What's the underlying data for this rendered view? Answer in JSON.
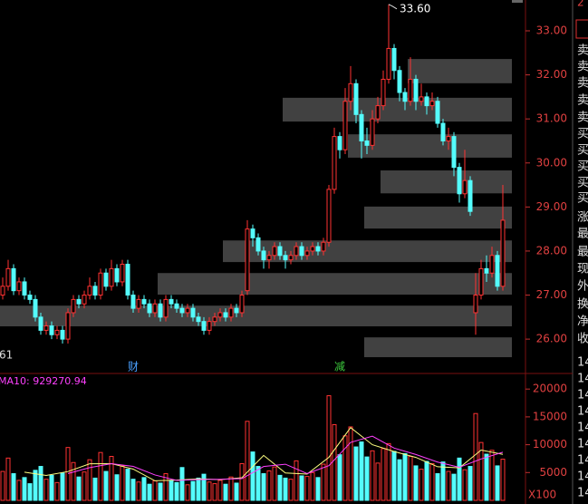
{
  "chart_data": [
    {
      "type": "candlestick",
      "open": [
        27.0,
        27.2,
        27.6,
        27.1,
        27.3,
        27.0,
        26.9,
        26.5,
        26.2,
        26.3,
        26.1,
        26.2,
        26.0,
        26.6,
        26.9,
        26.8,
        27.0,
        27.2,
        27.0,
        27.5,
        27.2,
        27.6,
        27.3,
        27.7,
        27.0,
        26.7,
        26.9,
        26.8,
        26.6,
        26.8,
        26.5,
        26.9,
        26.8,
        26.7,
        26.6,
        26.7,
        26.5,
        26.4,
        26.2,
        26.4,
        26.5,
        26.6,
        26.5,
        26.7,
        26.6,
        27.1,
        28.5,
        28.3,
        28.0,
        27.8,
        27.9,
        28.1,
        27.9,
        27.8,
        27.9,
        28.1,
        27.9,
        28.0,
        28.1,
        28.0,
        28.2,
        29.4,
        30.6,
        30.3,
        31.4,
        31.8,
        31.1,
        30.5,
        30.4,
        31.0,
        31.3,
        31.9,
        32.6,
        32.1,
        31.6,
        31.4,
        31.9,
        31.4,
        31.5,
        31.3,
        31.4,
        30.9,
        30.5,
        30.6,
        29.9,
        29.3,
        29.6,
        26.6,
        27.0,
        27.6,
        27.5,
        27.9,
        27.2
      ],
      "high": [
        27.4,
        27.8,
        27.7,
        27.4,
        27.4,
        27.1,
        27.0,
        26.6,
        26.4,
        26.4,
        26.3,
        26.3,
        26.7,
        27.0,
        27.0,
        27.1,
        27.4,
        27.3,
        27.6,
        27.6,
        27.8,
        27.7,
        27.8,
        27.8,
        27.1,
        27.0,
        27.0,
        26.9,
        26.9,
        26.9,
        27.0,
        27.0,
        26.9,
        26.8,
        26.8,
        26.8,
        26.6,
        26.5,
        26.5,
        26.6,
        26.7,
        26.7,
        26.8,
        26.8,
        27.1,
        28.7,
        28.6,
        28.4,
        28.1,
        28.0,
        28.2,
        28.2,
        28.0,
        28.0,
        28.2,
        28.2,
        28.1,
        28.2,
        28.2,
        28.3,
        29.5,
        30.8,
        30.7,
        31.7,
        32.2,
        31.9,
        31.2,
        30.8,
        31.2,
        31.5,
        32.1,
        33.6,
        32.7,
        32.2,
        31.7,
        32.4,
        32.0,
        31.8,
        31.6,
        31.6,
        31.5,
        31.0,
        30.8,
        30.7,
        30.0,
        30.3,
        29.7,
        27.5,
        27.8,
        27.9,
        28.1,
        28.0,
        29.5
      ],
      "low": [
        26.9,
        27.1,
        27.0,
        27.0,
        26.9,
        26.8,
        26.4,
        26.1,
        26.1,
        26.0,
        26.0,
        25.9,
        25.9,
        26.5,
        26.7,
        26.7,
        26.9,
        26.9,
        26.9,
        27.1,
        27.1,
        27.2,
        27.2,
        26.9,
        26.6,
        26.6,
        26.7,
        26.5,
        26.5,
        26.4,
        26.4,
        26.7,
        26.6,
        26.5,
        26.5,
        26.4,
        26.3,
        26.1,
        26.1,
        26.3,
        26.4,
        26.4,
        26.4,
        26.5,
        26.5,
        27.0,
        28.1,
        27.9,
        27.6,
        27.6,
        27.8,
        27.8,
        27.6,
        27.7,
        27.8,
        27.8,
        27.8,
        27.9,
        27.9,
        27.9,
        28.1,
        29.3,
        30.1,
        30.2,
        31.2,
        30.9,
        30.1,
        30.2,
        30.3,
        30.9,
        31.2,
        31.8,
        31.9,
        31.4,
        31.2,
        31.3,
        31.2,
        31.3,
        31.1,
        31.2,
        30.8,
        30.4,
        30.3,
        29.7,
        29.1,
        29.2,
        28.8,
        26.1,
        26.9,
        27.3,
        27.4,
        27.1,
        27.1
      ],
      "close": [
        27.2,
        27.6,
        27.1,
        27.3,
        27.0,
        26.9,
        26.5,
        26.2,
        26.3,
        26.1,
        26.2,
        26.0,
        26.6,
        26.9,
        26.8,
        27.0,
        27.2,
        27.0,
        27.5,
        27.2,
        27.6,
        27.3,
        27.7,
        27.0,
        26.7,
        26.9,
        26.8,
        26.6,
        26.8,
        26.5,
        26.9,
        26.8,
        26.7,
        26.6,
        26.7,
        26.5,
        26.4,
        26.2,
        26.4,
        26.5,
        26.6,
        26.5,
        26.7,
        26.6,
        27.0,
        28.5,
        28.3,
        28.0,
        27.8,
        27.9,
        28.1,
        27.9,
        27.8,
        27.9,
        28.1,
        27.9,
        28.0,
        28.1,
        28.0,
        28.2,
        29.4,
        30.6,
        30.3,
        31.4,
        31.8,
        31.1,
        30.5,
        30.4,
        31.0,
        31.3,
        31.9,
        32.6,
        32.1,
        31.6,
        31.4,
        31.9,
        31.4,
        31.5,
        31.3,
        31.4,
        30.9,
        30.5,
        30.6,
        29.9,
        29.3,
        29.6,
        28.9,
        27.0,
        27.6,
        27.5,
        27.9,
        27.2,
        28.7
      ],
      "color_up": "#ff3232",
      "color_down": "#54fcfc",
      "ylim": [
        25.57,
        33.7
      ],
      "yticks": [
        {
          "value": 26,
          "label": "26.00"
        },
        {
          "value": 27,
          "label": "27.00"
        },
        {
          "value": 28,
          "label": "28.00"
        },
        {
          "value": 29,
          "label": "29.00"
        },
        {
          "value": 30,
          "label": "30.00"
        },
        {
          "value": 31,
          "label": "31.00"
        },
        {
          "value": 32,
          "label": "32.00"
        },
        {
          "value": 33,
          "label": "33.00"
        }
      ],
      "bands": [
        {
          "low": 31.81,
          "high": 32.36,
          "start": 75
        },
        {
          "low": 30.94,
          "high": 31.48,
          "start": 52
        },
        {
          "low": 30.12,
          "high": 30.65,
          "start": 64
        },
        {
          "low": 29.31,
          "high": 29.83,
          "start": 70
        },
        {
          "low": 28.51,
          "high": 29.01,
          "start": 67
        },
        {
          "low": 27.75,
          "high": 28.24,
          "start": 41
        },
        {
          "low": 27.01,
          "high": 27.5,
          "start": 29
        },
        {
          "low": 26.29,
          "high": 26.76,
          "start": 0
        },
        {
          "low": 25.59,
          "high": 26.04,
          "start": 67
        }
      ],
      "band_color": "#484848",
      "annotation": {
        "text": "33.60",
        "value": 33.6,
        "index": 71
      },
      "markers": [
        {
          "label": "财",
          "index": 24,
          "color": "#4aa0ff"
        },
        {
          "label": "减",
          "index": 62,
          "color": "#3cc83c"
        }
      ],
      "low_label": "61"
    },
    {
      "type": "bar",
      "values": [
        5200,
        7600,
        4800,
        3600,
        4100,
        3000,
        5400,
        6100,
        3800,
        4500,
        3200,
        4900,
        9500,
        6800,
        4200,
        5100,
        7300,
        4000,
        8600,
        5200,
        7900,
        4600,
        6200,
        5600,
        3800,
        3300,
        4100,
        2900,
        3500,
        3100,
        4800,
        3600,
        3200,
        5900,
        2800,
        3400,
        4000,
        4700,
        3300,
        3000,
        3600,
        2900,
        4200,
        3100,
        6600,
        14200,
        8700,
        6100,
        4800,
        5300,
        6000,
        4500,
        4000,
        3800,
        7100,
        4400,
        4300,
        5000,
        4100,
        6500,
        18800,
        13600,
        8200,
        11600,
        13200,
        9600,
        10500,
        7800,
        8900,
        6700,
        9300,
        10200,
        8800,
        7300,
        8400,
        7900,
        6200,
        5600,
        7000,
        6600,
        4800,
        6900,
        5200,
        4700,
        7600,
        5500,
        6100,
        15600,
        10400,
        8300,
        9000,
        6200,
        7400
      ],
      "series": [
        {
          "name": "MA5",
          "color": "#ffff80",
          "x": [
            4,
            8,
            12,
            16,
            20,
            24,
            28,
            32,
            36,
            40,
            44,
            48,
            52,
            56,
            60,
            64,
            68,
            72,
            76,
            80,
            84,
            88,
            92
          ],
          "values": [
            5060,
            4480,
            5180,
            6580,
            6600,
            5620,
            3520,
            3640,
            3860,
            3720,
            4080,
            8080,
            4920,
            4720,
            7740,
            13080,
            10000,
            8780,
            7720,
            6040,
            5840,
            9040,
            8260
          ]
        },
        {
          "name": "MA10",
          "color": "#ff40ff",
          "x": [
            12,
            16,
            20,
            24,
            28,
            32,
            36,
            40,
            44,
            48,
            52,
            56,
            60,
            64,
            68,
            72,
            76,
            80,
            84,
            88,
            92
          ],
          "values": [
            4830,
            5880,
            6590,
            6110,
            4570,
            3580,
            3750,
            3790,
            3900,
            6080,
            6500,
            4820,
            6230,
            10410,
            11540,
            9390,
            8250,
            6880,
            5940,
            7440,
            8650
          ]
        }
      ],
      "ma_label": "MA10: 929270.94",
      "unit": "X100",
      "ylim": [
        0,
        22800
      ],
      "yticks": [
        5000,
        10000,
        15000,
        20000
      ]
    }
  ],
  "side_panel": {
    "top": "2",
    "rows": [
      "卖",
      "卖",
      "卖",
      "卖",
      "卖",
      "买",
      "买",
      "买",
      "买",
      "买",
      "涨",
      "最",
      "最",
      "现",
      "外",
      "换",
      "净",
      "收"
    ],
    "numbers": [
      "14",
      "14",
      "14",
      "14",
      "14",
      "14",
      "14",
      "14",
      "14"
    ]
  }
}
